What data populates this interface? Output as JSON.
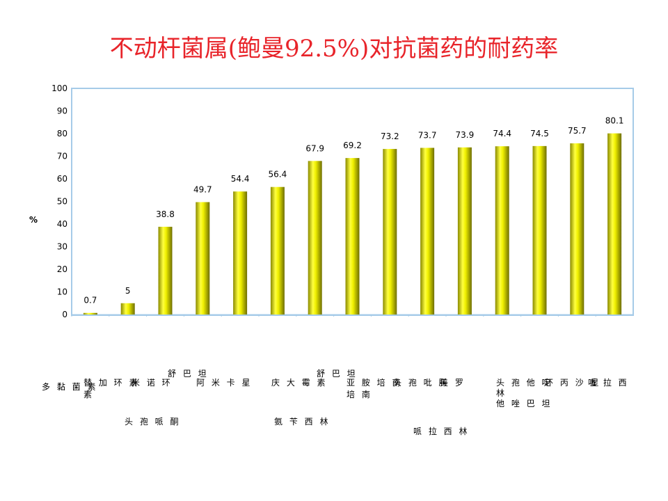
{
  "title": "不动杆菌属(鲍曼92.5%)对抗菌药的耐药率",
  "chart_data": {
    "type": "bar",
    "ylabel": "%",
    "ylim": [
      0,
      100
    ],
    "yticks": [
      0,
      10,
      20,
      30,
      40,
      50,
      60,
      70,
      80,
      90,
      100
    ],
    "values": [
      0.7,
      5,
      38.8,
      49.7,
      54.4,
      56.4,
      67.9,
      69.2,
      73.2,
      73.7,
      73.9,
      74.4,
      74.5,
      75.7,
      80.1
    ],
    "data_labels": [
      "0.7",
      "5",
      "38.8",
      "49.7",
      "54.4",
      "56.4",
      "67.9",
      "69.2",
      "73.2",
      "73.7",
      "73.9",
      "74.4",
      "74.5",
      "75.7",
      "80.1"
    ],
    "category_label_texts": [
      "多 黏 菌 素",
      "替 加 环 素",
      "素",
      "米 诺 环",
      "舒 巴 坦",
      "头 孢 哌 酮",
      "阿 米 卡 星",
      "庆 大 霉 素",
      "氨 苄 西 林",
      "舒 巴 坦",
      "亚 胺 培 南",
      "培 南",
      "头 孢 吡 肟",
      "哌 拉 西 林",
      "美 罗",
      "头 孢 他 啶",
      "林",
      "他 唑 巴 坦",
      "环 丙 沙 星",
      "哌 拉 西"
    ],
    "bar_color": "#d8d800",
    "plot_border_color": "#a6cbe8"
  }
}
